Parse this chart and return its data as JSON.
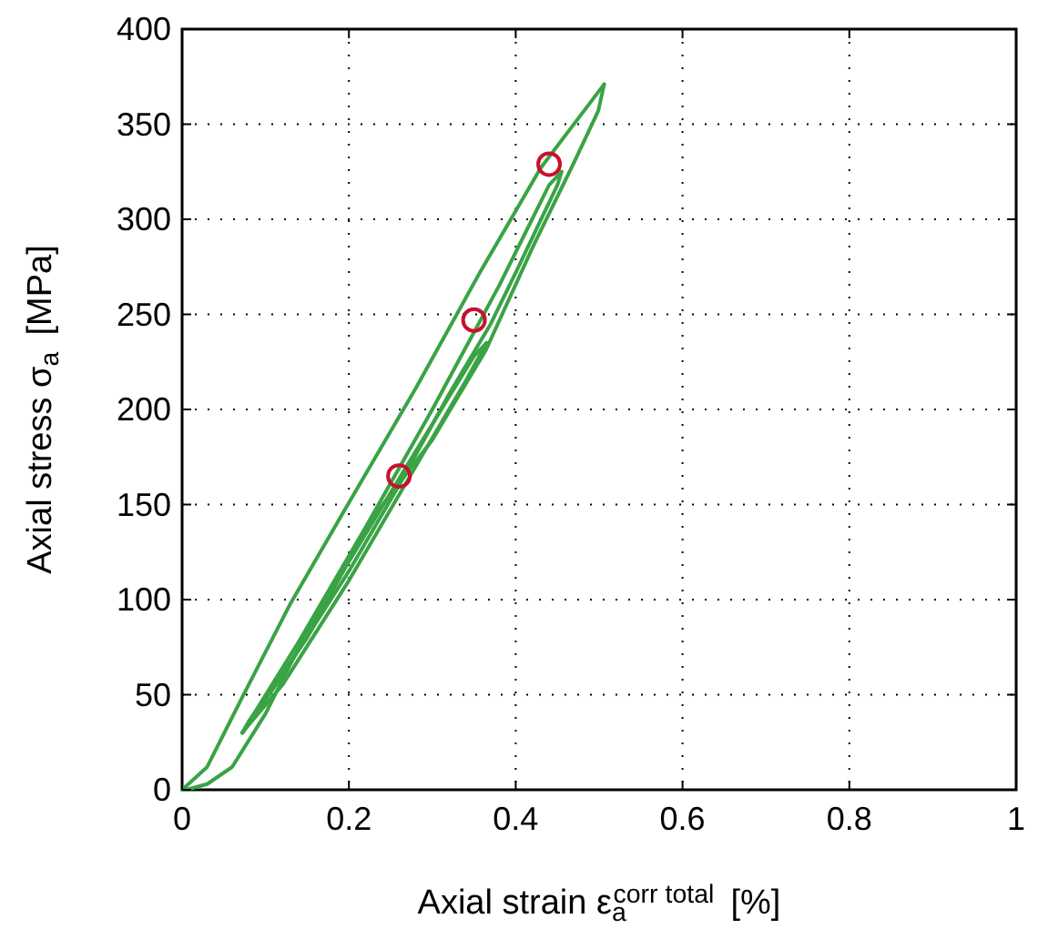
{
  "chart_data": {
    "type": "line",
    "xlabel": "Axial strain ε$_{a}$$^{corr total}$ [%]",
    "ylabel": "Axial stress σ$_{a}$ [MPa]",
    "xlim": [
      0,
      1
    ],
    "ylim": [
      0,
      400
    ],
    "xticks": [
      0,
      0.2,
      0.4,
      0.6,
      0.8,
      1
    ],
    "yticks": [
      0,
      50,
      100,
      150,
      200,
      250,
      300,
      350,
      400
    ],
    "grid": true,
    "series": [
      {
        "color": "#3aa345",
        "marker": "none",
        "x": [
          0,
          0.03,
          0.0725,
          0.13,
          0.196,
          0.28,
          0.357,
          0.43,
          0.506
        ],
        "values": [
          0,
          12,
          49,
          98,
          148,
          211,
          272,
          327,
          371
        ]
      },
      {
        "color": "#3aa345",
        "marker": "none",
        "x": [
          0.506,
          0.499,
          0.47,
          0.42,
          0.364,
          0.3,
          0.225,
          0.15,
          0.08,
          0.0725
        ],
        "values": [
          371,
          357,
          330,
          285,
          231,
          184,
          141,
          80,
          36,
          30
        ]
      },
      {
        "color": "#3aa345",
        "marker": "none",
        "x": [
          0.0725,
          0.12,
          0.2,
          0.26,
          0.32,
          0.37,
          0.4,
          0.45,
          0.455
        ],
        "values": [
          30,
          60,
          115,
          160,
          208,
          245,
          272,
          318,
          325
        ]
      },
      {
        "color": "#3aa345",
        "marker": "none",
        "x": [
          0.455,
          0.44,
          0.38,
          0.3,
          0.22,
          0.14,
          0.072
        ],
        "values": [
          325,
          318,
          265,
          200,
          138,
          78,
          30
        ]
      },
      {
        "color": "#3aa345",
        "marker": "none",
        "x": [
          0.072,
          0.12,
          0.2,
          0.28,
          0.34,
          0.365
        ],
        "values": [
          30,
          55,
          110,
          170,
          215,
          235
        ]
      },
      {
        "color": "#3aa345",
        "marker": "none",
        "x": [
          0.365,
          0.35,
          0.28,
          0.2,
          0.14,
          0.1,
          0.06,
          0.03,
          0.005
        ],
        "values": [
          235,
          228,
          178,
          120,
          75,
          40,
          12,
          3,
          0
        ]
      },
      {
        "type": "scatter",
        "color": "#c8102e",
        "marker": "circle",
        "x": [
          0.26,
          0.35,
          0.44
        ],
        "values": [
          165,
          247,
          329
        ]
      }
    ]
  }
}
